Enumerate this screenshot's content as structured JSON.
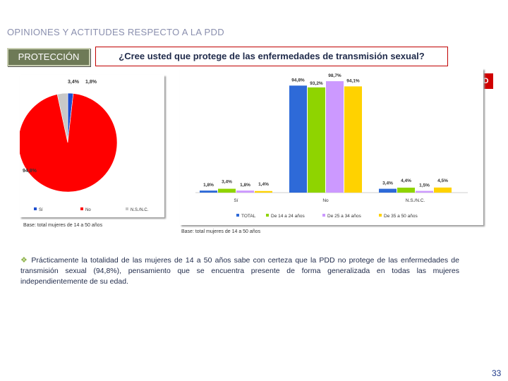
{
  "header": {
    "title": "OPINIONES Y ACTITUDES RESPECTO A LA PDD",
    "section_label": "PROTECCIÓN",
    "question": "¿Cree usted que protege de las enfermedades de transmisión sexual?",
    "edad_label": "EDAD"
  },
  "colors": {
    "si": "#1f4fcf",
    "no": "#ff0000",
    "ns": "#c8c8c8",
    "total": "#2e6ad8",
    "g14_24": "#8fd400",
    "g25_34": "#cc99ff",
    "g35_50": "#ffd200",
    "edad_bg": "#d00000"
  },
  "chart_data": [
    {
      "type": "pie",
      "categories": [
        "Sí",
        "No",
        "N.S./N.C."
      ],
      "values": [
        1.8,
        94.8,
        3.4
      ],
      "data_labels": [
        "1,8%",
        "94,8%",
        "3,4%"
      ],
      "legend": [
        "Sí",
        "No",
        "N.S./N.C."
      ],
      "legend_position": "bottom",
      "base": "Base: total mujeres de 14 a 50 años"
    },
    {
      "type": "bar",
      "categories": [
        "Sí",
        "No",
        "N.S./N.C."
      ],
      "series": [
        {
          "name": "TOTAL",
          "values": [
            1.8,
            94.8,
            3.4
          ],
          "labels": [
            "1,8%",
            "94,8%",
            "3,4%"
          ]
        },
        {
          "name": "De 14 a 24 años",
          "values": [
            3.4,
            93.2,
            4.4
          ],
          "labels": [
            "3,4%",
            "93,2%",
            "4,4%"
          ]
        },
        {
          "name": "De 25 a 34 años",
          "values": [
            1.8,
            98.7,
            1.5
          ],
          "labels": [
            "1,8%",
            "98,7%",
            "1,5%"
          ]
        },
        {
          "name": "De 35 a 50 años",
          "values": [
            1.4,
            94.1,
            4.5
          ],
          "labels": [
            "1,4%",
            "94,1%",
            "4,5%"
          ]
        }
      ],
      "ylim": [
        0,
        100
      ],
      "legend_position": "bottom",
      "base": "Base: total mujeres de 14 a 50 años"
    }
  ],
  "summary": {
    "bullet_text": "Prácticamente la totalidad de las mujeres de 14 a 50 años sabe con certeza que la PDD no protege de las enfermedades de transmisión sexual (94,8%), pensamiento que se encuentra presente de forma generalizada en todas las mujeres independientemente de su edad."
  },
  "page_number": "33"
}
